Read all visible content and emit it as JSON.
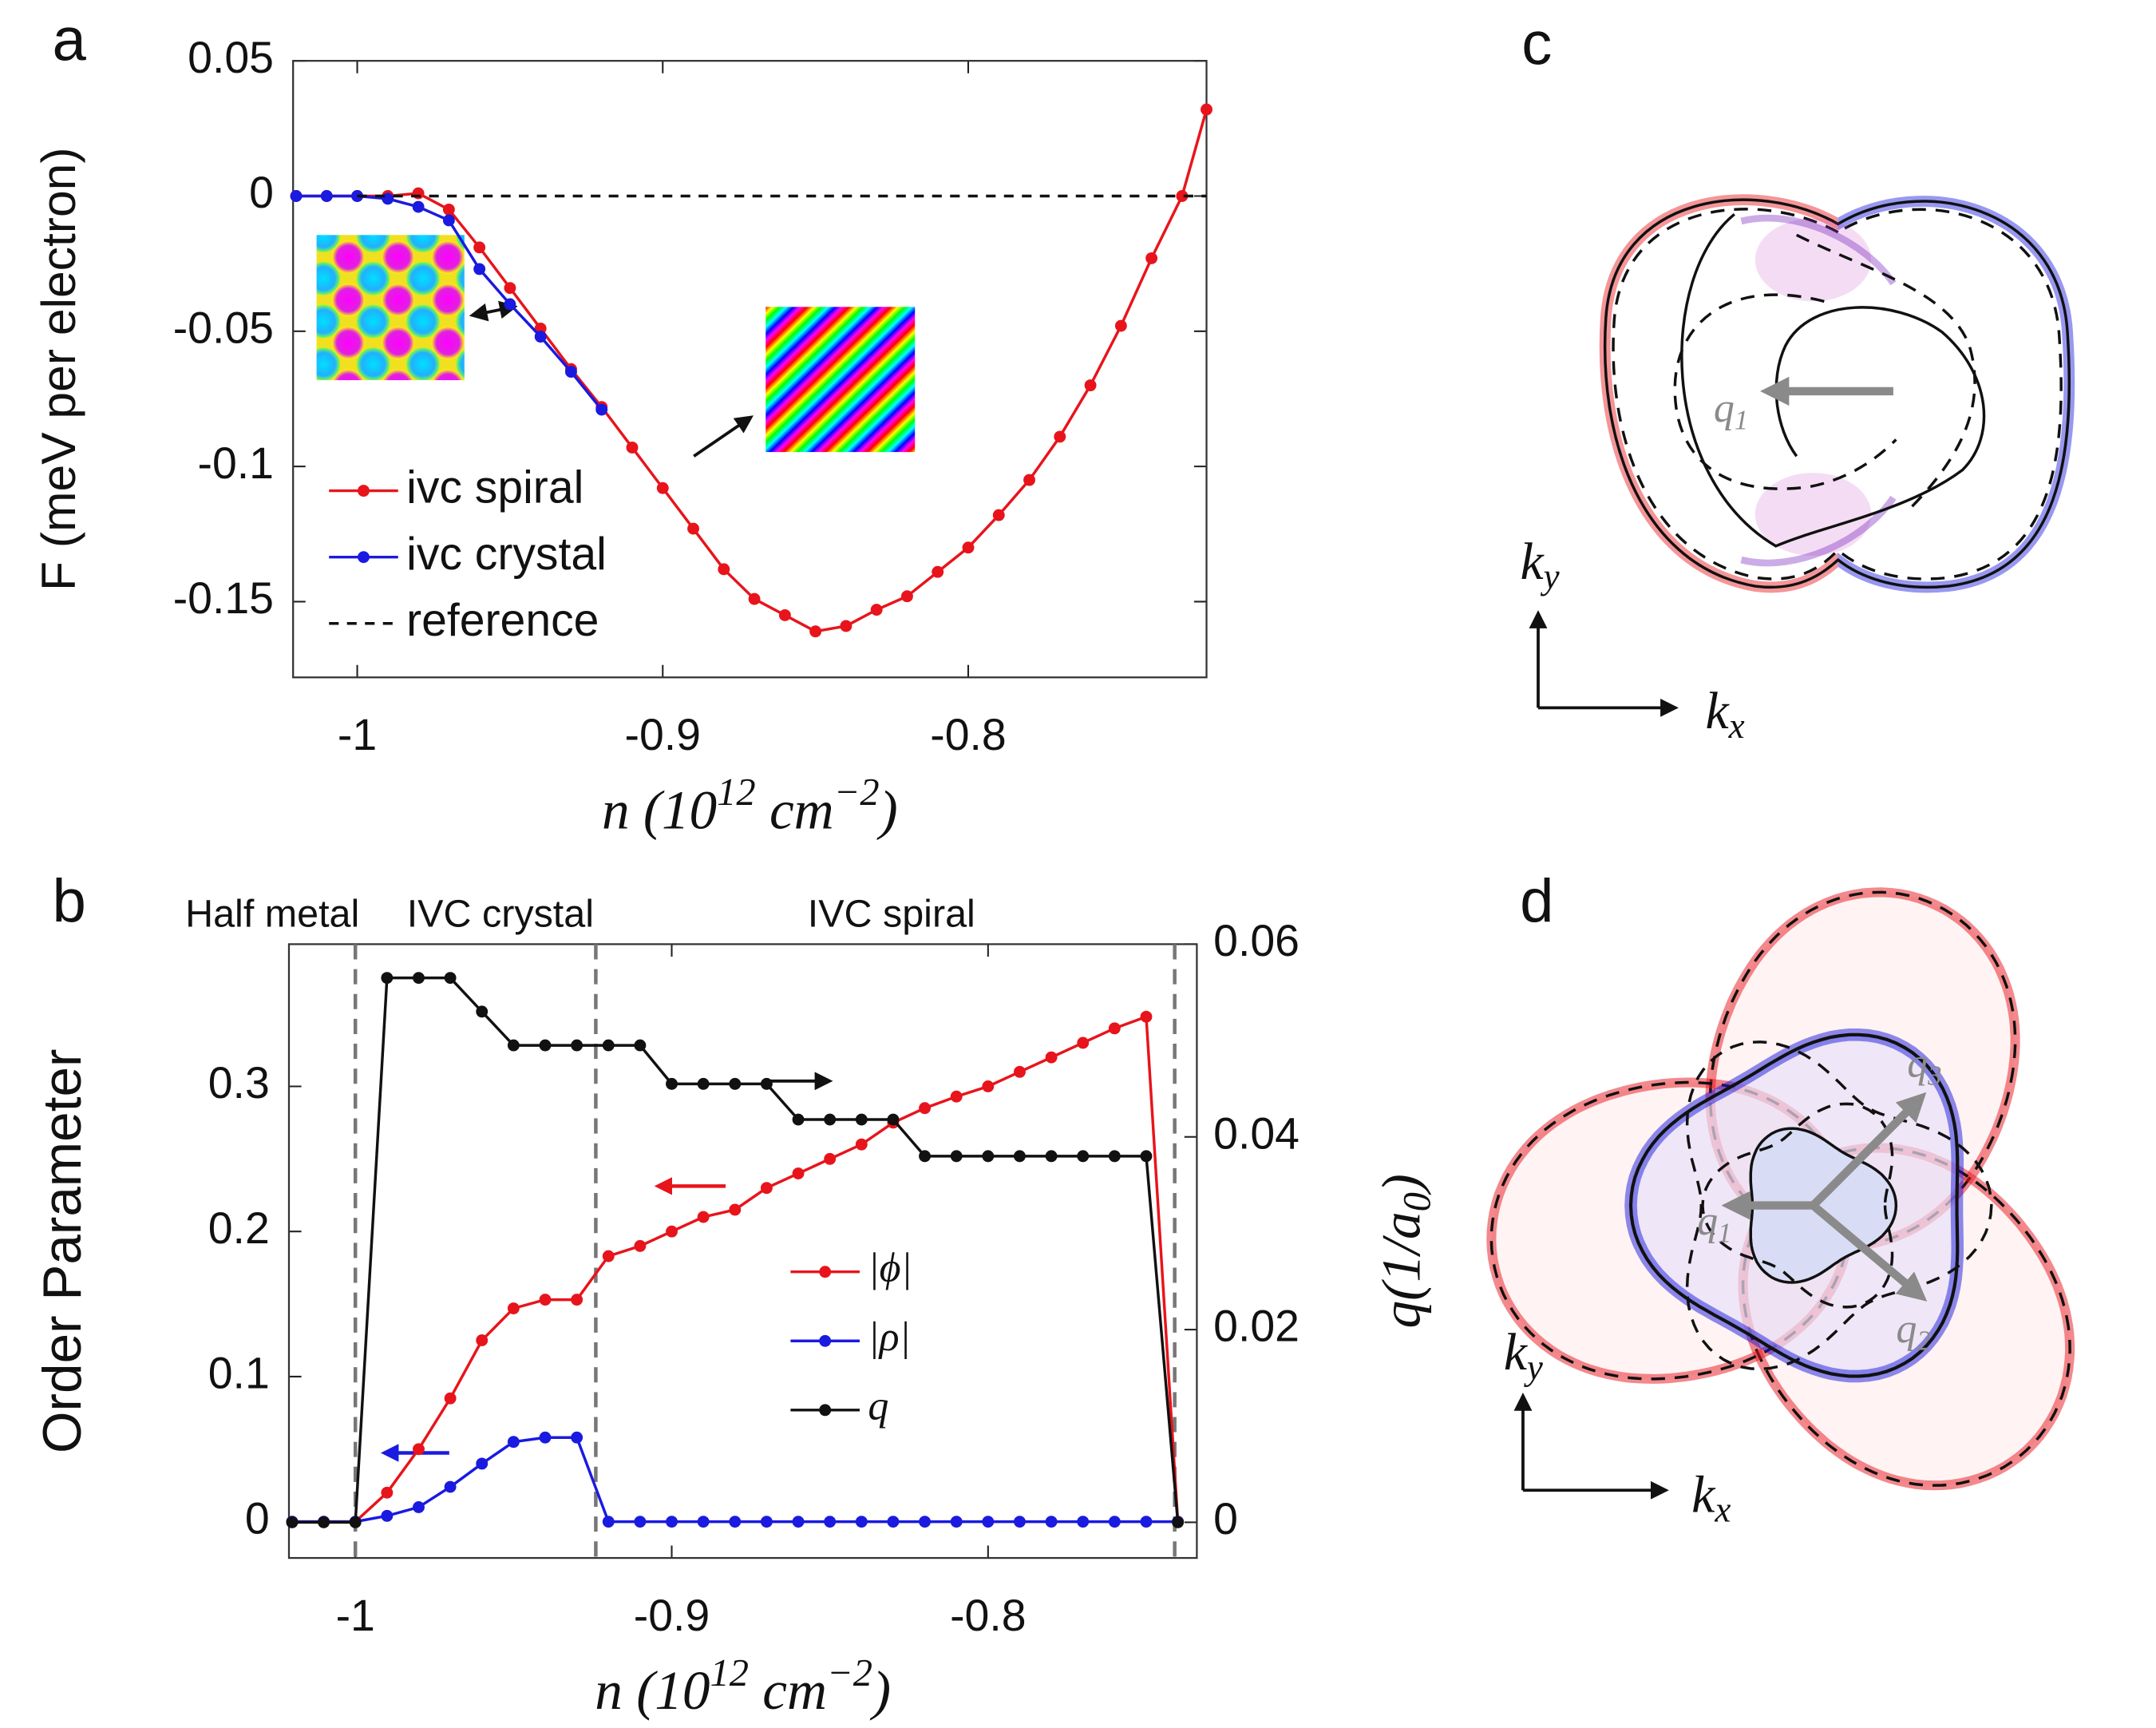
{
  "chart_data": [
    {
      "type": "line",
      "panel": "a",
      "ylabel": "F (meV per electron)",
      "xlabel": [
        "n (10",
        "12",
        " cm",
        "−2",
        ")"
      ],
      "x": [
        -1.02,
        -1.01,
        -1.0,
        -0.99,
        -0.98,
        -0.97,
        -0.96,
        -0.95,
        -0.94,
        -0.93,
        -0.92,
        -0.91,
        -0.9,
        -0.89,
        -0.88,
        -0.87,
        -0.86,
        -0.85,
        -0.84,
        -0.83,
        -0.82,
        -0.81,
        -0.8,
        -0.79,
        -0.78,
        -0.77,
        -0.76,
        -0.75,
        -0.74,
        -0.73,
        -0.722
      ],
      "series": [
        {
          "name": "ivc spiral",
          "color": "#e8141b",
          "marker": "o",
          "linestyle": "-",
          "values": [
            0,
            0,
            0,
            0,
            0.001,
            -0.005,
            -0.019,
            -0.034,
            -0.049,
            -0.064,
            -0.078,
            -0.093,
            -0.108,
            -0.123,
            -0.138,
            -0.149,
            -0.155,
            -0.161,
            -0.159,
            -0.153,
            -0.148,
            -0.139,
            -0.13,
            -0.118,
            -0.105,
            -0.089,
            -0.07,
            -0.048,
            -0.023,
            0,
            0.032
          ]
        },
        {
          "name": "ivc crystal",
          "color": "#1a1ae0",
          "marker": "o",
          "linestyle": "-",
          "values": [
            0,
            0,
            0,
            -0.001,
            -0.004,
            -0.009,
            -0.027,
            -0.04,
            -0.052,
            -0.065,
            -0.079,
            null,
            null,
            null,
            null,
            null,
            null,
            null,
            null,
            null,
            null,
            null,
            null,
            null,
            null,
            null,
            null,
            null,
            null,
            null,
            null
          ]
        },
        {
          "name": "reference",
          "color": "#111111",
          "marker": "none",
          "linestyle": "--",
          "values": [
            null,
            null,
            0,
            0,
            0,
            0,
            0,
            0,
            0,
            0,
            0,
            0,
            0,
            0,
            0,
            0,
            0,
            0,
            0,
            0,
            0,
            0,
            0,
            0,
            0,
            0,
            0,
            0,
            0,
            0,
            0
          ]
        }
      ],
      "xlim": [
        -1.021,
        -0.722
      ],
      "ylim": [
        -0.178,
        0.05
      ],
      "xticks": [
        -1,
        -0.9,
        -0.8
      ],
      "yticks": [
        0.05,
        0,
        -0.05,
        -0.1,
        -0.15
      ]
    },
    {
      "type": "line",
      "panel": "b",
      "ylabel": "Order Parameter",
      "y2label": [
        "q(1/a",
        "0",
        ")"
      ],
      "xlabel": [
        "n (10",
        "12",
        " cm",
        "−2",
        ")"
      ],
      "regions": [
        "Half metal",
        "IVC crystal",
        "IVC spiral"
      ],
      "vlines": [
        -1,
        -0.924,
        -0.741
      ],
      "x": [
        -1.02,
        -1.01,
        -1.0,
        -0.99,
        -0.98,
        -0.97,
        -0.96,
        -0.95,
        -0.94,
        -0.93,
        -0.92,
        -0.91,
        -0.9,
        -0.89,
        -0.88,
        -0.87,
        -0.86,
        -0.85,
        -0.84,
        -0.83,
        -0.82,
        -0.81,
        -0.8,
        -0.79,
        -0.78,
        -0.77,
        -0.76,
        -0.75,
        -0.74
      ],
      "series": [
        {
          "name": "|ϕ|",
          "color": "#e8141b",
          "marker": "o",
          "axis": "y",
          "values": [
            0,
            0,
            0,
            0.02,
            0.05,
            0.085,
            0.125,
            0.147,
            0.153,
            0.153,
            0.183,
            0.19,
            0.2,
            0.21,
            0.215,
            0.23,
            0.24,
            0.25,
            0.26,
            0.275,
            0.285,
            0.293,
            0.3,
            0.31,
            0.32,
            0.33,
            0.34,
            0.348,
            0
          ]
        },
        {
          "name": "|ρ|",
          "color": "#1a1ae0",
          "marker": "o",
          "axis": "y",
          "values": [
            0,
            0,
            0,
            0.004,
            0.01,
            0.024,
            0.04,
            0.055,
            0.058,
            0.058,
            0,
            0,
            0,
            0,
            0,
            0,
            0,
            0,
            0,
            0,
            0,
            0,
            0,
            0,
            0,
            0,
            0,
            0,
            0
          ]
        },
        {
          "name": "q",
          "color": "#111111",
          "marker": "o",
          "axis": "y2",
          "values": [
            0,
            0,
            0,
            0.0565,
            0.0565,
            0.0565,
            0.053,
            0.0495,
            0.0495,
            0.0495,
            0.0495,
            0.0495,
            0.0455,
            0.0455,
            0.0455,
            0.0455,
            0.0418,
            0.0418,
            0.0418,
            0.0418,
            0.038,
            0.038,
            0.038,
            0.038,
            0.038,
            0.038,
            0.038,
            0.038,
            0
          ]
        }
      ],
      "xlim": [
        -1.021,
        -0.734
      ],
      "ylim": [
        -0.025,
        0.398
      ],
      "y2lim": [
        -0.0037,
        0.06
      ],
      "xticks": [
        -1,
        -0.9,
        -0.8
      ],
      "yticks": [
        0,
        0.1,
        0.2,
        0.3
      ],
      "y2ticks": [
        0,
        0.02,
        0.04,
        0.06
      ]
    }
  ],
  "panels": {
    "c": {
      "letter": "c",
      "ky": [
        "k",
        "y"
      ],
      "kx": [
        "k",
        "x"
      ],
      "q1": [
        "q",
        "1"
      ]
    },
    "d": {
      "letter": "d",
      "ky": [
        "k",
        "y"
      ],
      "kx": [
        "k",
        "x"
      ],
      "q1": [
        "q",
        "1"
      ],
      "q2": [
        "q",
        "2"
      ],
      "q3": [
        "q",
        "3"
      ]
    }
  }
}
